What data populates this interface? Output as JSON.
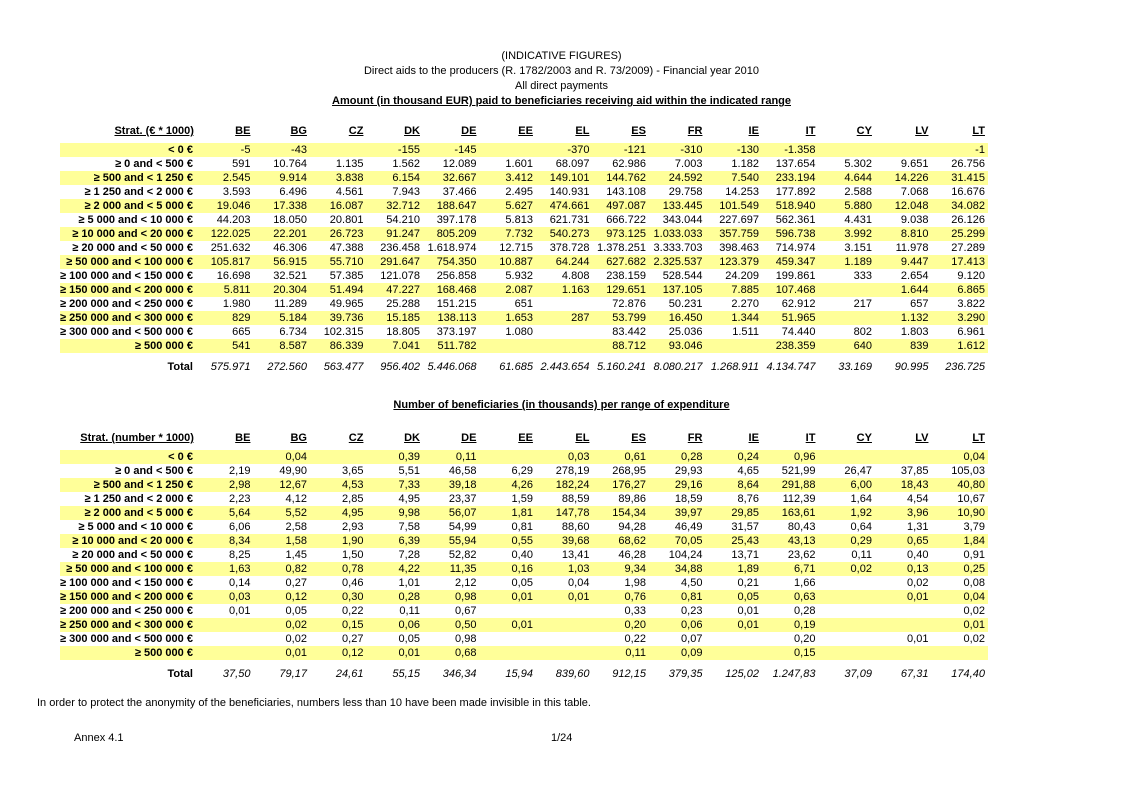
{
  "header": {
    "line1": "(INDICATIVE FIGURES)",
    "line2": "Direct aids to the producers (R. 1782/2003 and R. 73/2009) - Financial year 2010",
    "line3": "All direct payments",
    "title": "Amount (in thousand EUR) paid to beneficiaries receiving aid within the indicated range"
  },
  "countries": [
    "BE",
    "BG",
    "CZ",
    "DK",
    "DE",
    "EE",
    "EL",
    "ES",
    "FR",
    "IE",
    "IT",
    "CY",
    "LV",
    "LT"
  ],
  "table1": {
    "label_header": "Strat. (€ * 1000)",
    "rows": [
      {
        "label": "< 0 €",
        "values": [
          "-5",
          "-43",
          "",
          "-155",
          "-145",
          "",
          "-370",
          "-121",
          "-310",
          "-130",
          "-1.358",
          "",
          "",
          "-1"
        ]
      },
      {
        "label": "≥ 0 and < 500 €",
        "values": [
          "591",
          "10.764",
          "1.135",
          "1.562",
          "12.089",
          "1.601",
          "68.097",
          "62.986",
          "7.003",
          "1.182",
          "137.654",
          "5.302",
          "9.651",
          "26.756"
        ]
      },
      {
        "label": "≥ 500 and < 1 250 €",
        "values": [
          "2.545",
          "9.914",
          "3.838",
          "6.154",
          "32.667",
          "3.412",
          "149.101",
          "144.762",
          "24.592",
          "7.540",
          "233.194",
          "4.644",
          "14.226",
          "31.415"
        ]
      },
      {
        "label": "≥ 1 250 and < 2 000 €",
        "values": [
          "3.593",
          "6.496",
          "4.561",
          "7.943",
          "37.466",
          "2.495",
          "140.931",
          "143.108",
          "29.758",
          "14.253",
          "177.892",
          "2.588",
          "7.068",
          "16.676"
        ]
      },
      {
        "label": "≥ 2 000 and < 5 000 €",
        "values": [
          "19.046",
          "17.338",
          "16.087",
          "32.712",
          "188.647",
          "5.627",
          "474.661",
          "497.087",
          "133.445",
          "101.549",
          "518.940",
          "5.880",
          "12.048",
          "34.082"
        ]
      },
      {
        "label": "≥ 5 000 and < 10 000 €",
        "values": [
          "44.203",
          "18.050",
          "20.801",
          "54.210",
          "397.178",
          "5.813",
          "621.731",
          "666.722",
          "343.044",
          "227.697",
          "562.361",
          "4.431",
          "9.038",
          "26.126"
        ]
      },
      {
        "label": "≥ 10 000 and < 20 000 €",
        "values": [
          "122.025",
          "22.201",
          "26.723",
          "91.247",
          "805.209",
          "7.732",
          "540.273",
          "973.125",
          "1.033.033",
          "357.759",
          "596.738",
          "3.992",
          "8.810",
          "25.299"
        ]
      },
      {
        "label": "≥ 20 000 and < 50 000 €",
        "values": [
          "251.632",
          "46.306",
          "47.388",
          "236.458",
          "1.618.974",
          "12.715",
          "378.728",
          "1.378.251",
          "3.333.703",
          "398.463",
          "714.974",
          "3.151",
          "11.978",
          "27.289"
        ]
      },
      {
        "label": "≥ 50 000 and < 100 000 €",
        "values": [
          "105.817",
          "56.915",
          "55.710",
          "291.647",
          "754.350",
          "10.887",
          "64.244",
          "627.682",
          "2.325.537",
          "123.379",
          "459.347",
          "1.189",
          "9.447",
          "17.413"
        ]
      },
      {
        "label": "≥ 100 000 and < 150 000 €",
        "values": [
          "16.698",
          "32.521",
          "57.385",
          "121.078",
          "256.858",
          "5.932",
          "4.808",
          "238.159",
          "528.544",
          "24.209",
          "199.861",
          "333",
          "2.654",
          "9.120"
        ]
      },
      {
        "label": "≥ 150 000 and < 200 000 €",
        "values": [
          "5.811",
          "20.304",
          "51.494",
          "47.227",
          "168.468",
          "2.087",
          "1.163",
          "129.651",
          "137.105",
          "7.885",
          "107.468",
          "",
          "1.644",
          "6.865"
        ]
      },
      {
        "label": "≥ 200 000 and < 250 000 €",
        "values": [
          "1.980",
          "11.289",
          "49.965",
          "25.288",
          "151.215",
          "651",
          "",
          "72.876",
          "50.231",
          "2.270",
          "62.912",
          "217",
          "657",
          "3.822"
        ]
      },
      {
        "label": "≥ 250 000 and < 300 000 €",
        "values": [
          "829",
          "5.184",
          "39.736",
          "15.185",
          "138.113",
          "1.653",
          "287",
          "53.799",
          "16.450",
          "1.344",
          "51.965",
          "",
          "1.132",
          "3.290"
        ]
      },
      {
        "label": "≥ 300 000 and < 500 000 €",
        "values": [
          "665",
          "6.734",
          "102.315",
          "18.805",
          "373.197",
          "1.080",
          "",
          "83.442",
          "25.036",
          "1.511",
          "74.440",
          "802",
          "1.803",
          "6.961"
        ]
      },
      {
        "label": "≥ 500 000 €",
        "values": [
          "541",
          "8.587",
          "86.339",
          "7.041",
          "511.782",
          "",
          "",
          "88.712",
          "93.046",
          "",
          "238.359",
          "640",
          "839",
          "1.612"
        ]
      }
    ],
    "total": {
      "label": "Total",
      "values": [
        "575.971",
        "272.560",
        "563.477",
        "956.402",
        "5.446.068",
        "61.685",
        "2.443.654",
        "5.160.241",
        "8.080.217",
        "1.268.911",
        "4.134.747",
        "33.169",
        "90.995",
        "236.725"
      ]
    }
  },
  "section2": {
    "title": "Number of beneficiaries (in thousands) per range of expenditure"
  },
  "table2": {
    "label_header": "Strat. (number * 1000)",
    "rows": [
      {
        "label": "< 0 €",
        "values": [
          "",
          "0,04",
          "",
          "0,39",
          "0,11",
          "",
          "0,03",
          "0,61",
          "0,28",
          "0,24",
          "0,96",
          "",
          "",
          "0,04"
        ]
      },
      {
        "label": "≥ 0 and < 500 €",
        "values": [
          "2,19",
          "49,90",
          "3,65",
          "5,51",
          "46,58",
          "6,29",
          "278,19",
          "268,95",
          "29,93",
          "4,65",
          "521,99",
          "26,47",
          "37,85",
          "105,03"
        ]
      },
      {
        "label": "≥ 500 and < 1 250 €",
        "values": [
          "2,98",
          "12,67",
          "4,53",
          "7,33",
          "39,18",
          "4,26",
          "182,24",
          "176,27",
          "29,16",
          "8,64",
          "291,88",
          "6,00",
          "18,43",
          "40,80"
        ]
      },
      {
        "label": "≥ 1 250 and < 2 000 €",
        "values": [
          "2,23",
          "4,12",
          "2,85",
          "4,95",
          "23,37",
          "1,59",
          "88,59",
          "89,86",
          "18,59",
          "8,76",
          "112,39",
          "1,64",
          "4,54",
          "10,67"
        ]
      },
      {
        "label": "≥ 2 000 and < 5 000 €",
        "values": [
          "5,64",
          "5,52",
          "4,95",
          "9,98",
          "56,07",
          "1,81",
          "147,78",
          "154,34",
          "39,97",
          "29,85",
          "163,61",
          "1,92",
          "3,96",
          "10,90"
        ]
      },
      {
        "label": "≥ 5 000 and < 10 000 €",
        "values": [
          "6,06",
          "2,58",
          "2,93",
          "7,58",
          "54,99",
          "0,81",
          "88,60",
          "94,28",
          "46,49",
          "31,57",
          "80,43",
          "0,64",
          "1,31",
          "3,79"
        ]
      },
      {
        "label": "≥ 10 000 and < 20 000 €",
        "values": [
          "8,34",
          "1,58",
          "1,90",
          "6,39",
          "55,94",
          "0,55",
          "39,68",
          "68,62",
          "70,05",
          "25,43",
          "43,13",
          "0,29",
          "0,65",
          "1,84"
        ]
      },
      {
        "label": "≥ 20 000 and < 50 000 €",
        "values": [
          "8,25",
          "1,45",
          "1,50",
          "7,28",
          "52,82",
          "0,40",
          "13,41",
          "46,28",
          "104,24",
          "13,71",
          "23,62",
          "0,11",
          "0,40",
          "0,91"
        ]
      },
      {
        "label": "≥ 50 000 and < 100 000 €",
        "values": [
          "1,63",
          "0,82",
          "0,78",
          "4,22",
          "11,35",
          "0,16",
          "1,03",
          "9,34",
          "34,88",
          "1,89",
          "6,71",
          "0,02",
          "0,13",
          "0,25"
        ]
      },
      {
        "label": "≥ 100 000 and < 150 000 €",
        "values": [
          "0,14",
          "0,27",
          "0,46",
          "1,01",
          "2,12",
          "0,05",
          "0,04",
          "1,98",
          "4,50",
          "0,21",
          "1,66",
          "",
          "0,02",
          "0,08"
        ]
      },
      {
        "label": "≥ 150 000 and < 200 000 €",
        "values": [
          "0,03",
          "0,12",
          "0,30",
          "0,28",
          "0,98",
          "0,01",
          "0,01",
          "0,76",
          "0,81",
          "0,05",
          "0,63",
          "",
          "0,01",
          "0,04"
        ]
      },
      {
        "label": "≥ 200 000 and < 250 000 €",
        "values": [
          "0,01",
          "0,05",
          "0,22",
          "0,11",
          "0,67",
          "",
          "",
          "0,33",
          "0,23",
          "0,01",
          "0,28",
          "",
          "",
          "0,02"
        ]
      },
      {
        "label": "≥ 250 000 and < 300 000 €",
        "values": [
          "",
          "0,02",
          "0,15",
          "0,06",
          "0,50",
          "0,01",
          "",
          "0,20",
          "0,06",
          "0,01",
          "0,19",
          "",
          "",
          "0,01"
        ]
      },
      {
        "label": "≥ 300 000 and < 500 000 €",
        "values": [
          "",
          "0,02",
          "0,27",
          "0,05",
          "0,98",
          "",
          "",
          "0,22",
          "0,07",
          "",
          "0,20",
          "",
          "0,01",
          "0,02"
        ]
      },
      {
        "label": "≥ 500 000 €",
        "values": [
          "",
          "0,01",
          "0,12",
          "0,01",
          "0,68",
          "",
          "",
          "0,11",
          "0,09",
          "",
          "0,15",
          "",
          "",
          ""
        ]
      }
    ],
    "total": {
      "label": "Total",
      "values": [
        "37,50",
        "79,17",
        "24,61",
        "55,15",
        "346,34",
        "15,94",
        "839,60",
        "912,15",
        "379,35",
        "125,02",
        "1.247,83",
        "37,09",
        "67,31",
        "174,40"
      ]
    }
  },
  "footer": {
    "note": "In order to protect the anonymity of the beneficiaries, numbers less than 10 have been made invisible in this table.",
    "annex": "Annex 4.1",
    "page": "1/24"
  }
}
